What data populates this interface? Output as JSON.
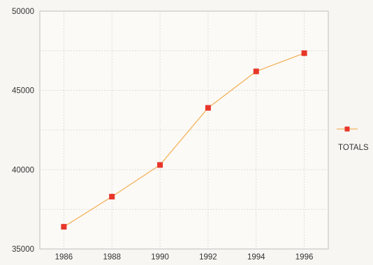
{
  "chart_data": {
    "type": "line",
    "title": "",
    "xlabel": "",
    "ylabel": "",
    "x": [
      1986,
      1988,
      1990,
      1992,
      1994,
      1996
    ],
    "x_ticks": [
      "1986",
      "1988",
      "1990",
      "1992",
      "1994",
      "1996"
    ],
    "xlim": [
      1985,
      1997
    ],
    "ylim": [
      35000,
      50000
    ],
    "y_ticks": [
      "35000",
      "40000",
      "45000",
      "50000"
    ],
    "y_tick_values": [
      35000,
      40000,
      45000,
      50000
    ],
    "y_gridlines": [
      37500,
      42500,
      47500
    ],
    "series": [
      {
        "name": "TOTALS",
        "values": [
          36400,
          38300,
          40300,
          43900,
          46200,
          47350
        ]
      }
    ],
    "grid": true,
    "legend": "right",
    "colors": {
      "line": "#f5b25a",
      "marker": "#e8352a",
      "grid": "#d6d6d6",
      "axis": "#bdbdbd"
    }
  }
}
